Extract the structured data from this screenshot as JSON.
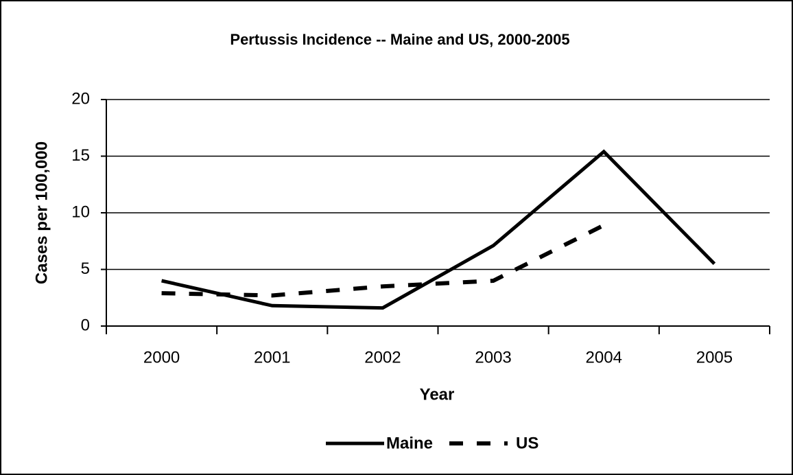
{
  "chart_data": {
    "type": "line",
    "title": "Pertussis Incidence -- Maine and US, 2000-2005",
    "x_label": "Year",
    "y_label": "Cases per 100,000",
    "categories": [
      "2000",
      "2001",
      "2002",
      "2003",
      "2004",
      "2005"
    ],
    "series": [
      {
        "name": "Maine",
        "color": "#000000",
        "style": "solid",
        "values": [
          4.0,
          1.8,
          1.6,
          7.1,
          15.4,
          5.5
        ]
      },
      {
        "name": "US",
        "color": "#000000",
        "style": "dashed",
        "values": [
          2.9,
          2.7,
          3.5,
          4.0,
          8.9,
          null
        ]
      }
    ],
    "ylim": [
      0,
      20
    ],
    "yticks": [
      0,
      5,
      10,
      15,
      20
    ],
    "grid": true,
    "legend": "bottom"
  }
}
